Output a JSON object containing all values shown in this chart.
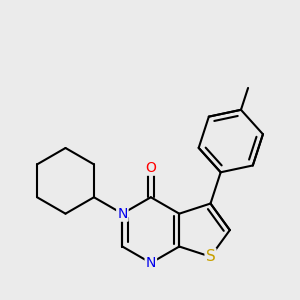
{
  "bg_color": "#ebebeb",
  "bond_color": "#000000",
  "atom_colors": {
    "N": "#0000ee",
    "S": "#c8a000",
    "O": "#ff0000",
    "C": "#000000"
  },
  "bond_lw": 1.5,
  "font_size": 10,
  "figsize": [
    3.0,
    3.0
  ],
  "dpi": 100
}
